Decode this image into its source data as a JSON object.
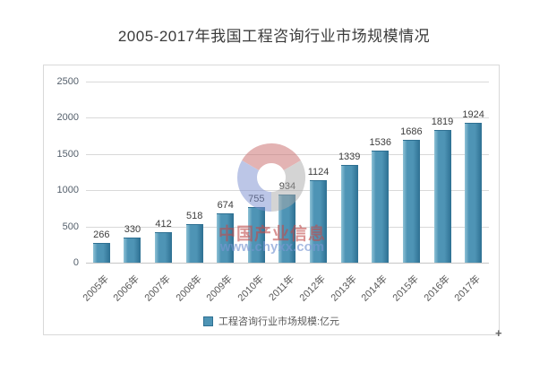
{
  "page": {
    "background": "#FFFFFF"
  },
  "chart_data": {
    "type": "bar",
    "title": "2005-2017年我国工程咨询行业市场规模情况",
    "categories": [
      "2005年",
      "2006年",
      "2007年",
      "2008年",
      "2009年",
      "2010年",
      "2011年",
      "2012年",
      "2013年",
      "2014年",
      "2015年",
      "2016年",
      "2017年"
    ],
    "series": [
      {
        "name": "工程咨询行业市场规模:亿元",
        "values": [
          266,
          330,
          412,
          518,
          674,
          755,
          934,
          1124,
          1339,
          1536,
          1686,
          1819,
          1924
        ]
      }
    ],
    "xlabel": "",
    "ylabel": "",
    "ylim": [
      0,
      2500
    ],
    "yticks": [
      0,
      500,
      1000,
      1500,
      2000,
      2500
    ],
    "grid": true,
    "legend_position": "bottom",
    "data_labels": true,
    "bar_color": "#4E94B5",
    "bar_color_light": "#8FC2D6",
    "bar_color_dark": "#2E7092",
    "gridline_color": "#D9D9D9",
    "axis_label_color": "#595959",
    "data_label_color": "#3D3D3D"
  },
  "legend": {
    "label": "工程咨询行业市场规模:亿元"
  },
  "watermark": {
    "brand_text": "中国产业信息",
    "url_text": "www.chyxx.com",
    "brand_color": "#C14A4A",
    "url_color": "#7896D2",
    "logo_colors": {
      "red": "#C96A6A",
      "gray": "#ABABAB",
      "blue": "#7C8FD0"
    }
  },
  "controls": {
    "resize_handle_glyph": "+"
  }
}
